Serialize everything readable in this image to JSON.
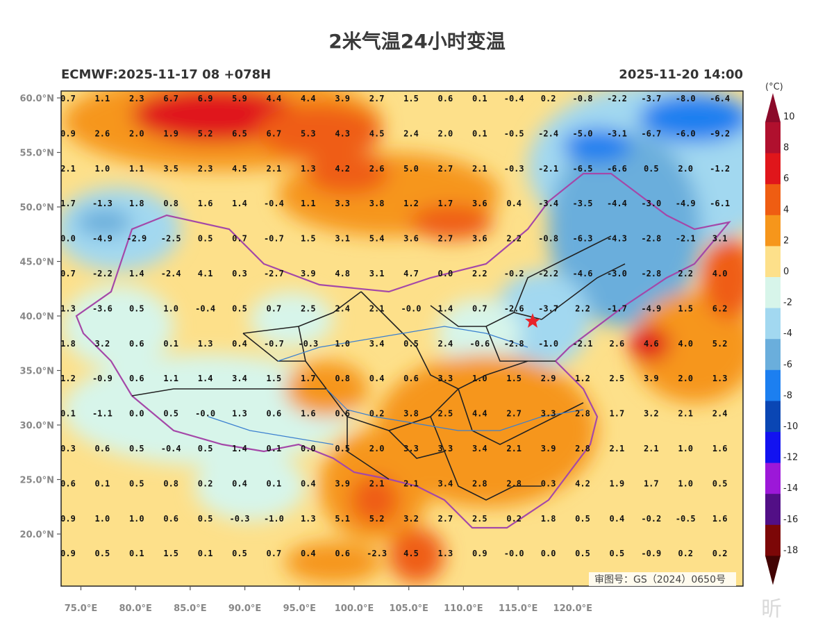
{
  "title": "2米气温24小时变温",
  "model_run": "ECMWF:2025-11-17 08 +078H",
  "valid_time": "2025-11-20 14:00",
  "unit": "(°C)",
  "approval_number": "审图号：GS（2024）0650号",
  "watermark": "昕",
  "lat_labels": [
    "60.0°N",
    "55.0°N",
    "50.0°N",
    "45.0°N",
    "40.0°N",
    "35.0°N",
    "30.0°N",
    "25.0°N",
    "20.0°N"
  ],
  "lon_labels": [
    "75.0°E",
    "80.0°E",
    "85.0°E",
    "90.0°E",
    "95.0°E",
    "100.0°E",
    "105.0°E",
    "110.0°E",
    "115.0°E",
    "120.0°E"
  ],
  "legend": {
    "labels": [
      "10",
      "8",
      "6",
      "4",
      "2",
      "0",
      "-2",
      "-4",
      "-6",
      "-8",
      "-10",
      "-12",
      "-14",
      "-16",
      "-18"
    ],
    "colors": [
      "#b0102e",
      "#e0161b",
      "#ef5d12",
      "#f6961b",
      "#fde08a",
      "#d7f5ea",
      "#a2d8f0",
      "#6aaedc",
      "#1c7ff0",
      "#0a46b4",
      "#1212f0",
      "#9c18d8",
      "#520f86",
      "#7c0707"
    ],
    "top_color": "#8b0a2a",
    "bottom_color": "#420303"
  },
  "station_values": [
    [
      "0.7",
      "1.1",
      "2.3",
      "6.7",
      "6.9",
      "5.9",
      "4.4",
      "4.4",
      "3.9",
      "2.7",
      "1.5",
      "0.6",
      "0.1",
      "-0.4",
      "0.2",
      "-0.8",
      "-2.2",
      "-3.7",
      "-8.0",
      "-6.4"
    ],
    [
      "0.9",
      "2.6",
      "2.0",
      "1.9",
      "5.2",
      "6.5",
      "6.7",
      "5.3",
      "4.3",
      "4.5",
      "2.4",
      "2.0",
      "0.1",
      "-0.5",
      "-2.4",
      "-5.0",
      "-3.1",
      "-6.7",
      "-6.0",
      "-9.2"
    ],
    [
      "2.1",
      "1.0",
      "1.1",
      "3.5",
      "2.3",
      "4.5",
      "2.1",
      "1.3",
      "4.2",
      "2.6",
      "5.0",
      "2.7",
      "2.1",
      "-0.3",
      "-2.1",
      "-6.5",
      "-6.6",
      "0.5",
      "2.0",
      "-1.2"
    ],
    [
      "1.7",
      "-1.3",
      "1.8",
      "0.8",
      "1.6",
      "1.4",
      "-0.4",
      "1.1",
      "3.3",
      "3.8",
      "1.2",
      "1.7",
      "3.6",
      "0.4",
      "-3.4",
      "-3.5",
      "-4.4",
      "-3.0",
      "-4.9",
      "-6.1"
    ],
    [
      "0.0",
      "-4.9",
      "-2.9",
      "-2.5",
      "0.5",
      "0.7",
      "-0.7",
      "1.5",
      "3.1",
      "5.4",
      "3.6",
      "2.7",
      "3.6",
      "2.2",
      "-0.8",
      "-6.3",
      "-4.3",
      "-2.8",
      "-2.1",
      "3.1"
    ],
    [
      "0.7",
      "-2.2",
      "1.4",
      "-2.4",
      "4.1",
      "0.3",
      "-2.7",
      "3.9",
      "4.8",
      "3.1",
      "4.7",
      "0.0",
      "2.2",
      "-0.2",
      "-2.2",
      "-4.6",
      "-3.0",
      "-2.8",
      "2.2",
      "4.0"
    ],
    [
      "1.3",
      "-3.6",
      "0.5",
      "1.0",
      "-0.4",
      "0.5",
      "0.7",
      "2.5",
      "2.4",
      "2.1",
      "-0.0",
      "1.4",
      "0.7",
      "-2.6",
      "-3.7",
      "2.2",
      "-1.7",
      "-4.9",
      "1.5",
      "6.2"
    ],
    [
      "1.8",
      "3.2",
      "0.6",
      "0.1",
      "1.3",
      "0.4",
      "-0.7",
      "-0.3",
      "1.0",
      "3.4",
      "0.5",
      "2.4",
      "-0.6",
      "-2.8",
      "-1.0",
      "-2.1",
      "2.6",
      "4.6",
      "4.0",
      "5.2"
    ],
    [
      "1.2",
      "-0.9",
      "0.6",
      "1.1",
      "1.4",
      "3.4",
      "1.5",
      "1.7",
      "0.8",
      "0.4",
      "0.6",
      "3.3",
      "1.0",
      "1.5",
      "2.9",
      "1.2",
      "2.5",
      "3.9",
      "2.0",
      "1.3"
    ],
    [
      "0.1",
      "-1.1",
      "0.0",
      "0.5",
      "-0.0",
      "1.3",
      "0.6",
      "1.6",
      "0.6",
      "0.2",
      "3.8",
      "2.5",
      "4.4",
      "2.7",
      "3.3",
      "2.8",
      "1.7",
      "3.2",
      "2.1",
      "2.4"
    ],
    [
      "0.3",
      "0.6",
      "0.5",
      "-0.4",
      "0.5",
      "1.4",
      "0.1",
      "0.0",
      "0.5",
      "2.0",
      "3.3",
      "3.3",
      "3.4",
      "2.1",
      "3.9",
      "2.8",
      "2.1",
      "2.1",
      "1.0",
      "1.6"
    ],
    [
      "0.6",
      "0.1",
      "0.5",
      "0.8",
      "0.2",
      "0.4",
      "0.1",
      "0.4",
      "3.9",
      "2.1",
      "2.1",
      "3.4",
      "2.8",
      "2.8",
      "0.3",
      "4.2",
      "1.9",
      "1.7",
      "1.0",
      "0.5"
    ],
    [
      "0.9",
      "1.0",
      "1.0",
      "0.6",
      "0.5",
      "-0.3",
      "-1.0",
      "1.3",
      "5.1",
      "5.2",
      "3.2",
      "2.7",
      "2.5",
      "0.2",
      "1.8",
      "0.5",
      "0.4",
      "-0.2",
      "-0.5",
      "1.6"
    ],
    [
      "0.9",
      "0.5",
      "0.1",
      "1.5",
      "0.1",
      "0.5",
      "0.7",
      "0.4",
      "0.6",
      "-2.3",
      "4.5",
      "1.3",
      "0.9",
      "-0.0",
      "0.0",
      "0.5",
      "0.5",
      "-0.9",
      "0.2",
      "0.2"
    ]
  ]
}
